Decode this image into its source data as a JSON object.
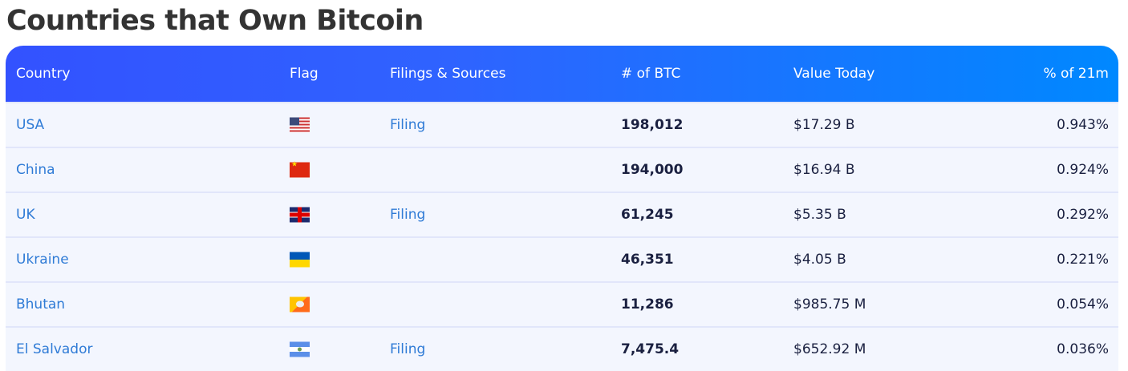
{
  "title": "Countries that Own Bitcoin",
  "headers": {
    "country": "Country",
    "flag": "Flag",
    "filings": "Filings & Sources",
    "btc": "# of BTC",
    "value": "Value Today",
    "pct": "% of 21m"
  },
  "rows": [
    {
      "country": "USA",
      "flag": "us-flag",
      "filing": "Filing",
      "btc": "198,012",
      "value": "$17.29 B",
      "pct": "0.943%"
    },
    {
      "country": "China",
      "flag": "china-flag",
      "filing": "",
      "btc": "194,000",
      "value": "$16.94 B",
      "pct": "0.924%"
    },
    {
      "country": "UK",
      "flag": "uk-flag",
      "filing": "Filing",
      "btc": "61,245",
      "value": "$5.35 B",
      "pct": "0.292%"
    },
    {
      "country": "Ukraine",
      "flag": "ukraine-flag",
      "filing": "",
      "btc": "46,351",
      "value": "$4.05 B",
      "pct": "0.221%"
    },
    {
      "country": "Bhutan",
      "flag": "bhutan-flag",
      "filing": "",
      "btc": "11,286",
      "value": "$985.75 M",
      "pct": "0.054%"
    },
    {
      "country": "El Salvador",
      "flag": "el-salvador-flag",
      "filing": "Filing",
      "btc": "7,475.4",
      "value": "$652.92 M",
      "pct": "0.036%"
    }
  ],
  "colors": {
    "header_start": "#3352ff",
    "header_end": "#0088ff",
    "link": "#2f7bd6",
    "row_bg": "#f3f6fe"
  }
}
